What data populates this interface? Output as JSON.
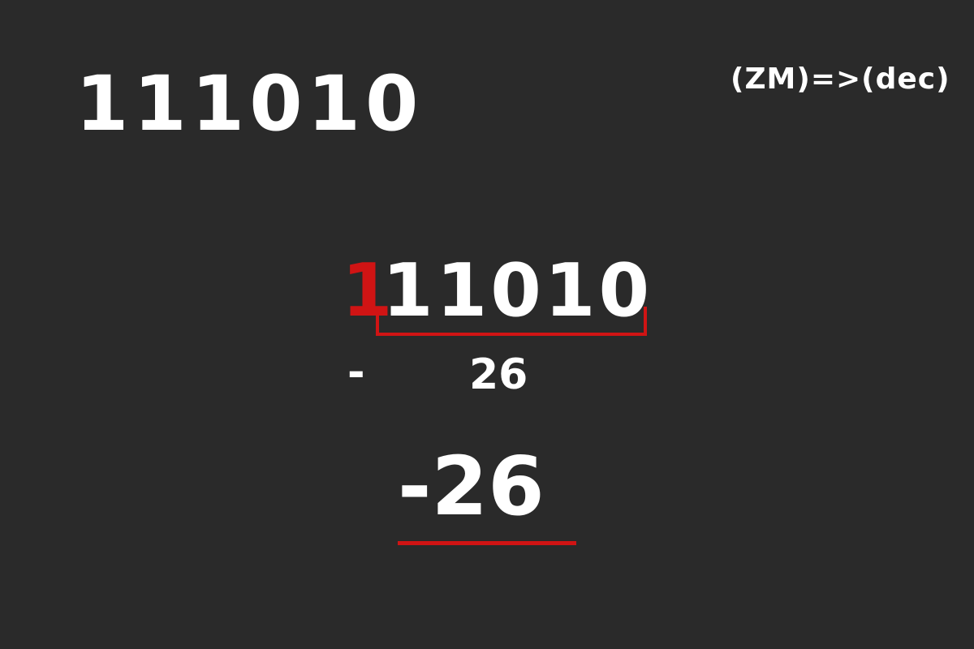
{
  "binary_input": "111010",
  "conversion_label": "(ZM)=>(dec)",
  "breakdown": {
    "sign_bit": "1",
    "magnitude_bits": "11010",
    "sign_symbol": "-",
    "magnitude_value": "26"
  },
  "result": "-26",
  "colors": {
    "background": "#2a2a2a",
    "text": "#ffffff",
    "accent": "#d01414"
  }
}
